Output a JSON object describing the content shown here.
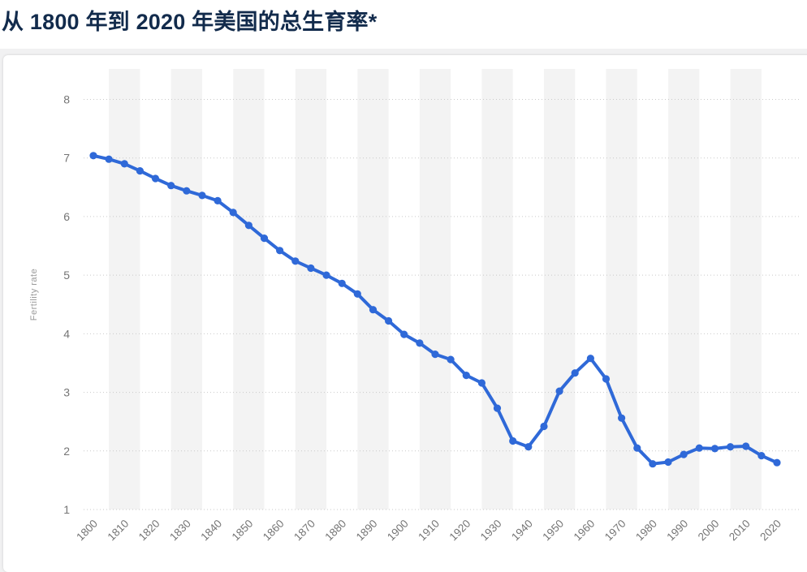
{
  "page": {
    "title": "从 1800 年到 2020 年美国的总生育率*"
  },
  "chart_data": {
    "type": "line",
    "title": "从 1800 年到 2020 年美国的总生育率*",
    "xlabel": "",
    "ylabel": "Fertility rate",
    "x": [
      1800,
      1805,
      1810,
      1815,
      1820,
      1825,
      1830,
      1835,
      1840,
      1845,
      1850,
      1855,
      1860,
      1865,
      1870,
      1875,
      1880,
      1885,
      1890,
      1895,
      1900,
      1905,
      1910,
      1915,
      1920,
      1925,
      1930,
      1935,
      1940,
      1945,
      1950,
      1955,
      1960,
      1965,
      1970,
      1975,
      1980,
      1985,
      1990,
      1995,
      2000,
      2005,
      2010,
      2015,
      2020
    ],
    "values": [
      7.04,
      6.98,
      6.9,
      6.78,
      6.65,
      6.53,
      6.44,
      6.36,
      6.27,
      6.07,
      5.85,
      5.63,
      5.42,
      5.24,
      5.12,
      5.0,
      4.86,
      4.68,
      4.41,
      4.22,
      3.99,
      3.84,
      3.65,
      3.56,
      3.29,
      3.16,
      2.73,
      2.17,
      2.07,
      2.42,
      3.02,
      3.33,
      3.58,
      3.23,
      2.56,
      2.05,
      1.78,
      1.81,
      1.94,
      2.05,
      2.04,
      2.07,
      2.08,
      1.92,
      1.8
    ],
    "x_ticks": [
      1800,
      1810,
      1820,
      1830,
      1840,
      1850,
      1860,
      1870,
      1880,
      1890,
      1900,
      1910,
      1920,
      1930,
      1940,
      1950,
      1960,
      1970,
      1980,
      1990,
      2000,
      2010,
      2020
    ],
    "y_ticks": [
      1,
      2,
      3,
      4,
      5,
      6,
      7,
      8
    ],
    "xlim": [
      1800,
      2020
    ],
    "ylim": [
      1,
      8
    ],
    "grid": "horizontal-dotted",
    "legend": "none",
    "plot_bands": {
      "centers": [
        1810,
        1830,
        1850,
        1870,
        1890,
        1910,
        1930,
        1950,
        1970,
        1990,
        2010
      ],
      "half_width": 5
    },
    "colors": {
      "line": "#2f69d8",
      "marker": "#2f69d8",
      "band": "#f3f3f3",
      "grid": "#c9c9c9",
      "axis_text": "#757575",
      "title_text": "#122b4c",
      "page_bg": "#f1f1f2",
      "card_bg": "#ffffff"
    }
  }
}
